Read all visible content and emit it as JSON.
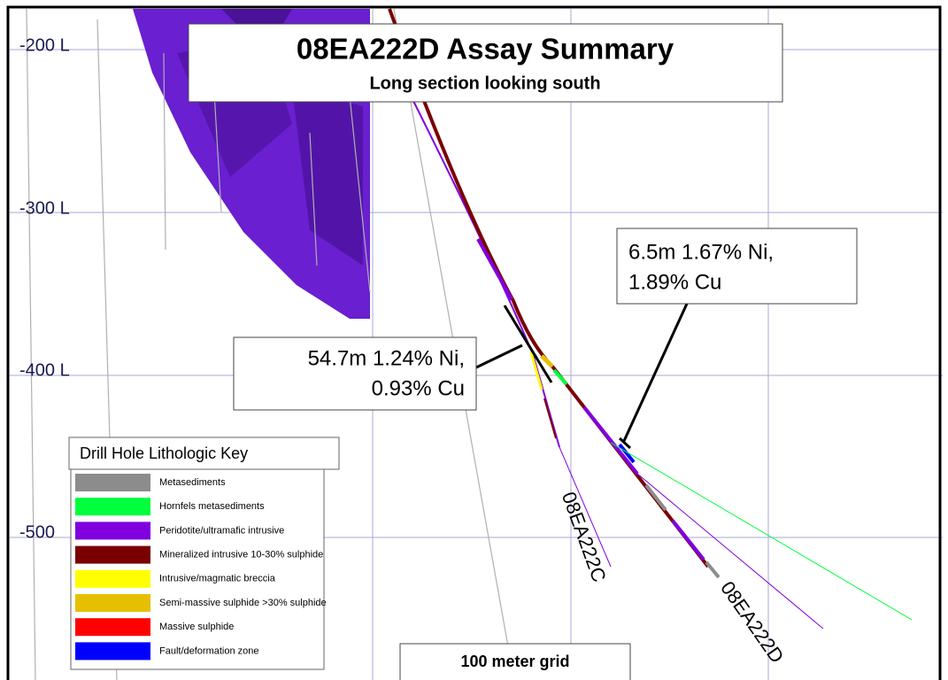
{
  "header": {
    "title": "08EA222D Assay Summary",
    "subtitle": "Long section looking south"
  },
  "levels": [
    "-200 L",
    "-300 L",
    "-400 L",
    "-500"
  ],
  "annotations": [
    [
      "6.5m 1.67% Ni,",
      "1.89% Cu"
    ],
    [
      "54.7m 1.24% Ni,",
      "0.93% Cu"
    ]
  ],
  "holes": [
    "08EA222C",
    "08EA222D"
  ],
  "key": {
    "title": "Drill Hole Lithologic Key",
    "items": [
      {
        "label": "Metasediments",
        "color": "#8c8c8c"
      },
      {
        "label": "Hornfels metasediments",
        "color": "#00ff3c"
      },
      {
        "label": "Peridotite/ultramafic intrusive",
        "color": "#8000e0"
      },
      {
        "label": "Mineralized intrusive 10-30% sulphide",
        "color": "#7a0000"
      },
      {
        "label": "Intrusive/magmatic breccia",
        "color": "#ffff00"
      },
      {
        "label": "Semi-massive sulphide >30% sulphide",
        "color": "#e6c000"
      },
      {
        "label": "Massive sulphide",
        "color": "#ff0000"
      },
      {
        "label": "Fault/deformation zone",
        "color": "#0000ff"
      }
    ]
  },
  "grid_note": "100 meter grid"
}
